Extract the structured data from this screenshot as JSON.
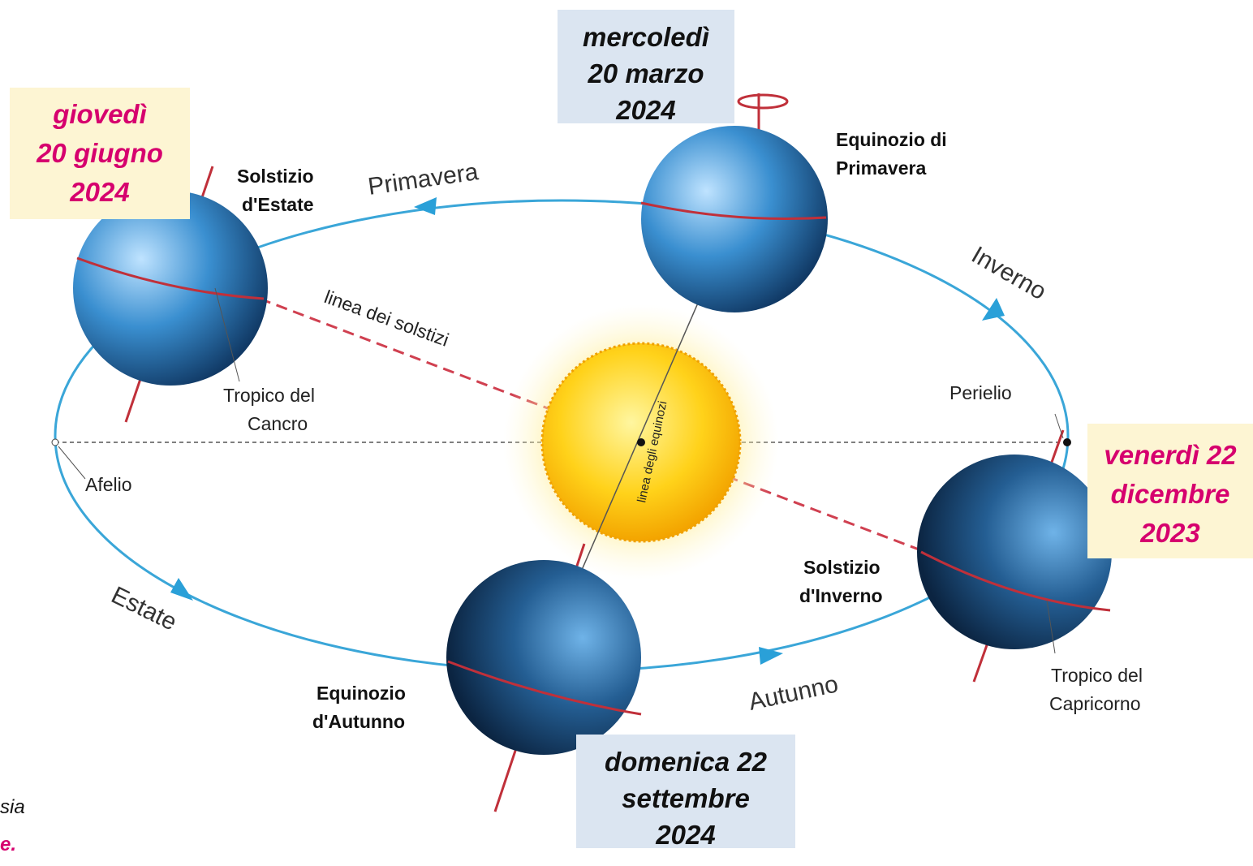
{
  "date_boxes": [
    {
      "lines": [
        "mercoledì",
        "20 marzo",
        "2024"
      ]
    },
    {
      "lines": [
        "giovedì",
        "20 giugno",
        "2024"
      ]
    },
    {
      "lines": [
        "venerdì 22",
        "dicembre",
        "2023"
      ]
    },
    {
      "lines": [
        "domenica 22",
        "settembre",
        "2024"
      ]
    }
  ],
  "positions": [
    {
      "lines": [
        "Solstizio",
        "d'Estate"
      ]
    },
    {
      "lines": [
        "Equinozio di",
        "Primavera"
      ]
    },
    {
      "lines": [
        "Solstizio",
        "d'Inverno"
      ]
    },
    {
      "lines": [
        "Equinozio",
        "d'Autunno"
      ]
    }
  ],
  "seasons": [
    "Primavera",
    "Inverno",
    "Estate",
    "Autunno"
  ],
  "lines": {
    "solstices": "linea dei solstizi",
    "equinoxes": "linea degli equinozi"
  },
  "tropics": [
    {
      "lines": [
        "Tropico del",
        "Cancro"
      ]
    },
    {
      "lines": [
        "Tropico del",
        "Capricorno"
      ]
    }
  ],
  "apsides": {
    "perihelion": "Perielio",
    "aphelion": "Afelio"
  },
  "cut_text": [
    "sia",
    "e."
  ]
}
